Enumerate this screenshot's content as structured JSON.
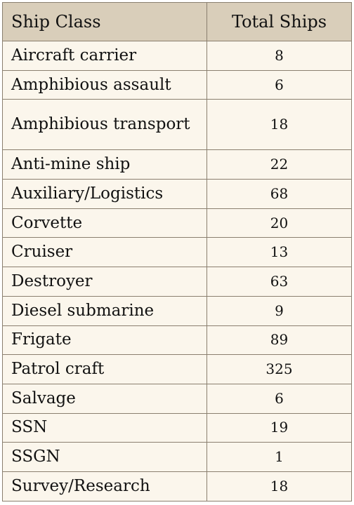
{
  "table": {
    "headers": {
      "ship_class": "Ship Class",
      "total_ships": "Total Ships"
    },
    "rows": [
      {
        "ship_class": "Aircraft carrier",
        "total_ships": "8"
      },
      {
        "ship_class": "Amphibious assault",
        "total_ships": "6"
      },
      {
        "ship_class": "Amphibious transport",
        "total_ships": "18"
      },
      {
        "ship_class": "Anti-mine ship",
        "total_ships": "22"
      },
      {
        "ship_class": "Auxiliary/Logistics",
        "total_ships": "68"
      },
      {
        "ship_class": "Corvette",
        "total_ships": "20"
      },
      {
        "ship_class": "Cruiser",
        "total_ships": "13"
      },
      {
        "ship_class": "Destroyer",
        "total_ships": "63"
      },
      {
        "ship_class": "Diesel submarine",
        "total_ships": "9"
      },
      {
        "ship_class": "Frigate",
        "total_ships": "89"
      },
      {
        "ship_class": "Patrol craft",
        "total_ships": "325"
      },
      {
        "ship_class": "Salvage",
        "total_ships": "6"
      },
      {
        "ship_class": "SSN",
        "total_ships": "19"
      },
      {
        "ship_class": "SSGN",
        "total_ships": "1"
      },
      {
        "ship_class": "Survey/Research",
        "total_ships": "18"
      }
    ],
    "colors": {
      "header_background": "#d9ceba",
      "body_background": "#fbf6ec",
      "border": "#8a7f6f",
      "text": "#111111"
    }
  }
}
